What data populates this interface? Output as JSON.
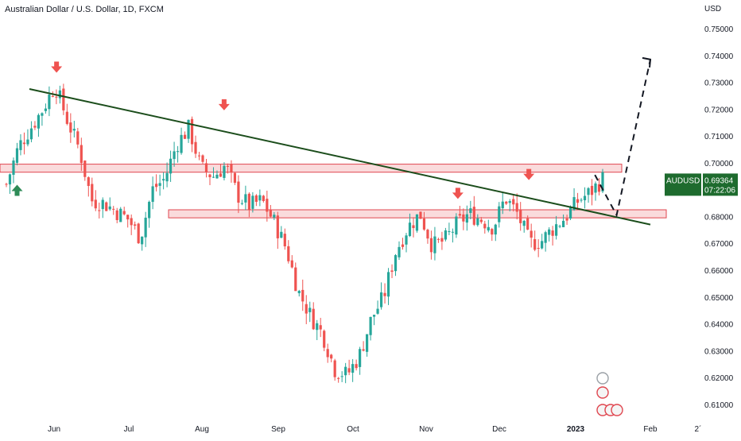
{
  "chart_data": {
    "type": "candlestick",
    "title": "Australian Dollar / U.S. Dollar, 1D, FXCM",
    "currency_label": "USD",
    "symbol": "AUDUSD",
    "last_price": "0.69364",
    "countdown": "07:22:06",
    "ylim": [
      0.604,
      0.762
    ],
    "y_ticks": [
      "0.75000",
      "0.74000",
      "0.73000",
      "0.72000",
      "0.71000",
      "0.70000",
      "0.69000",
      "0.68000",
      "0.67000",
      "0.66000",
      "0.65000",
      "0.64000",
      "0.63000",
      "0.62000",
      "0.61000"
    ],
    "x_ticks": [
      "Jun",
      "Jul",
      "Aug",
      "Sep",
      "Oct",
      "Nov",
      "Dec",
      "2023",
      "Feb",
      "2´"
    ],
    "price_path": [
      0.692,
      0.706,
      0.713,
      0.72,
      0.729,
      0.716,
      0.705,
      0.686,
      0.685,
      0.682,
      0.679,
      0.672,
      0.69,
      0.694,
      0.707,
      0.713,
      0.698,
      0.695,
      0.699,
      0.688,
      0.684,
      0.686,
      0.678,
      0.668,
      0.652,
      0.643,
      0.636,
      0.623,
      0.621,
      0.628,
      0.642,
      0.65,
      0.667,
      0.676,
      0.681,
      0.669,
      0.671,
      0.677,
      0.681,
      0.679,
      0.676,
      0.687,
      0.681,
      0.67,
      0.671,
      0.676,
      0.68,
      0.686,
      0.689,
      0.694
    ],
    "colors": {
      "up": "#26a69a",
      "down": "#ef5350",
      "trendline": "#1b4d1b",
      "zone_fill": "#f6c3c5",
      "zone_border": "#e0464f",
      "arrow": "#ef5350",
      "up_arrow": "#2e8b57",
      "price_label": "#1e6b2e"
    },
    "annotations": {
      "trendline": {
        "from": [
          "May 26",
          0.7275
        ],
        "to": [
          "Feb 1",
          0.677
        ]
      },
      "resistance_zone": {
        "low": 0.6965,
        "high": 0.6995
      },
      "support_zone": {
        "low": 0.6795,
        "high": 0.6825
      },
      "projection": [
        [
          "Jan 9",
          0.6955
        ],
        [
          "Jan 18",
          0.6805
        ],
        [
          "Feb 1",
          0.7385
        ]
      ],
      "down_arrows": [
        [
          "Jun 2",
          0.73
        ],
        [
          "Aug 10",
          0.716
        ],
        [
          "Nov 14",
          0.683
        ],
        [
          "Dec 13",
          0.69
        ]
      ],
      "up_arrows": [
        [
          "May 23",
          0.693
        ]
      ]
    }
  }
}
